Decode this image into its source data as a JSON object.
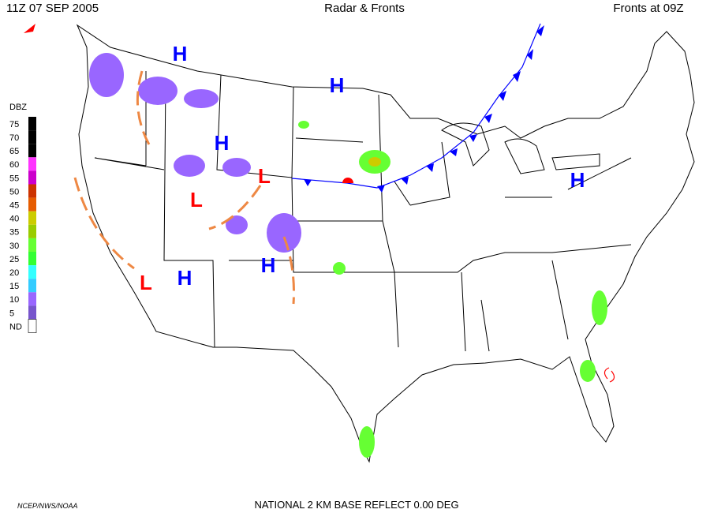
{
  "header": {
    "left": "11Z  07 SEP  2005",
    "center": "Radar & Fronts",
    "right": "Fronts at 09Z"
  },
  "legend": {
    "title": "DBZ",
    "levels": [
      {
        "label": "75",
        "color": "#000000"
      },
      {
        "label": "70",
        "color": "#000000"
      },
      {
        "label": "65",
        "color": "#000000"
      },
      {
        "label": "60",
        "color": "#ff33ff"
      },
      {
        "label": "55",
        "color": "#cc00cc"
      },
      {
        "label": "50",
        "color": "#cc3300"
      },
      {
        "label": "45",
        "color": "#e65c00"
      },
      {
        "label": "40",
        "color": "#cccc00"
      },
      {
        "label": "35",
        "color": "#99cc00"
      },
      {
        "label": "30",
        "color": "#66ff33"
      },
      {
        "label": "25",
        "color": "#33ff33"
      },
      {
        "label": "20",
        "color": "#33ffff"
      },
      {
        "label": "15",
        "color": "#33ccff"
      },
      {
        "label": "10",
        "color": "#9966ff"
      },
      {
        "label": "5",
        "color": "#7755cc"
      }
    ],
    "bottom": {
      "label": "ND",
      "color": "#ffffff"
    }
  },
  "pressure_centers": [
    "H",
    "H",
    "H",
    "H",
    "H",
    "H",
    "L",
    "L",
    "L"
  ],
  "footer": {
    "left": "NCEP/NWS/NOAA",
    "center": "NATIONAL 2 KM BASE REFLECT 0.00 DEG"
  }
}
